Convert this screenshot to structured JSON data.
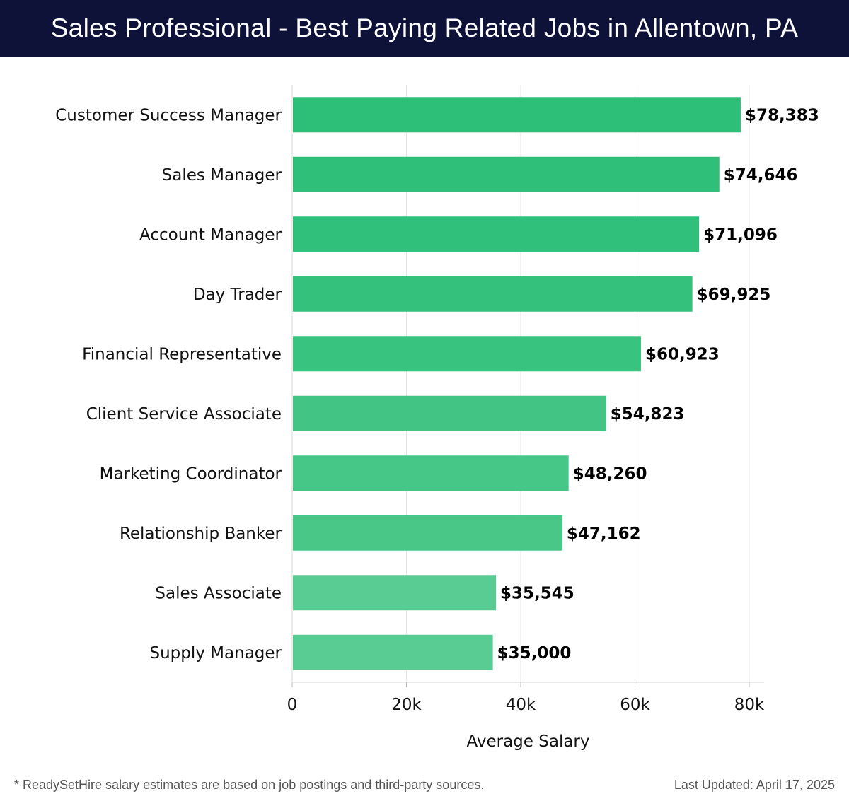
{
  "header": {
    "title": "Sales Professional - Best Paying Related Jobs in Allentown, PA"
  },
  "chart_data": {
    "type": "bar",
    "orientation": "horizontal",
    "categories": [
      "Customer Success Manager",
      "Sales Manager",
      "Account Manager",
      "Day Trader",
      "Financial Representative",
      "Client Service Associate",
      "Marketing Coordinator",
      "Relationship Banker",
      "Sales Associate",
      "Supply Manager"
    ],
    "values": [
      78383,
      74646,
      71096,
      69925,
      60923,
      54823,
      48260,
      47162,
      35545,
      35000
    ],
    "value_labels": [
      "$78,383",
      "$74,646",
      "$71,096",
      "$69,925",
      "$60,923",
      "$54,823",
      "$48,260",
      "$47,162",
      "$35,545",
      "$35,000"
    ],
    "bar_colors": [
      "#2dbe78",
      "#2fbf79",
      "#31c07b",
      "#33c17c",
      "#38c37f",
      "#42c584",
      "#47c787",
      "#48c787",
      "#58cc93",
      "#59cc93"
    ],
    "xlabel": "Average Salary",
    "ylabel": "",
    "xlim": [
      0,
      80000
    ],
    "xticks": [
      0,
      20000,
      40000,
      60000,
      80000
    ],
    "xtick_labels": [
      "0",
      "20k",
      "40k",
      "60k",
      "80k"
    ],
    "grid": true
  },
  "footer": {
    "note": "* ReadySetHire salary estimates are based on job postings and third-party sources.",
    "updated": "Last Updated: April 17, 2025"
  }
}
